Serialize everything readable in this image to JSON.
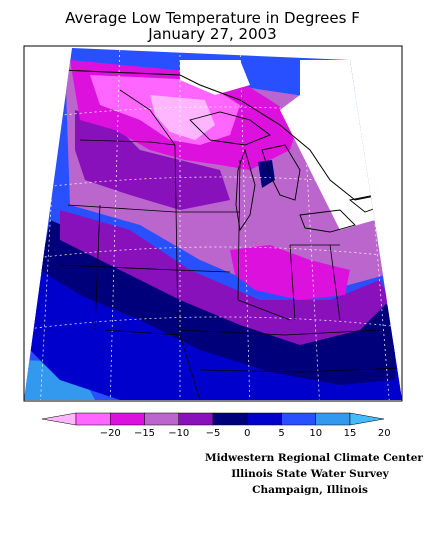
{
  "title": {
    "line1": "Average Low Temperature in Degrees F",
    "line2": "January 27, 2003"
  },
  "legend": {
    "bins": [
      {
        "color": "#ffb6ff"
      },
      {
        "color": "#ff66ff"
      },
      {
        "color": "#dd11dd"
      },
      {
        "color": "#bb66cc"
      },
      {
        "color": "#8811bb"
      },
      {
        "color": "#00007a"
      },
      {
        "color": "#0000cc"
      },
      {
        "color": "#2850ff"
      },
      {
        "color": "#3399ee"
      },
      {
        "color": "#44bbff"
      }
    ],
    "labels": [
      "−20",
      "−15",
      "−10",
      "−5",
      "0",
      "5",
      "10",
      "15",
      "20"
    ]
  },
  "credits": {
    "line1": "Midwestern Regional Climate Center",
    "line2": "Illinois State Water Survey",
    "line3": "Champaign, Illinois"
  }
}
